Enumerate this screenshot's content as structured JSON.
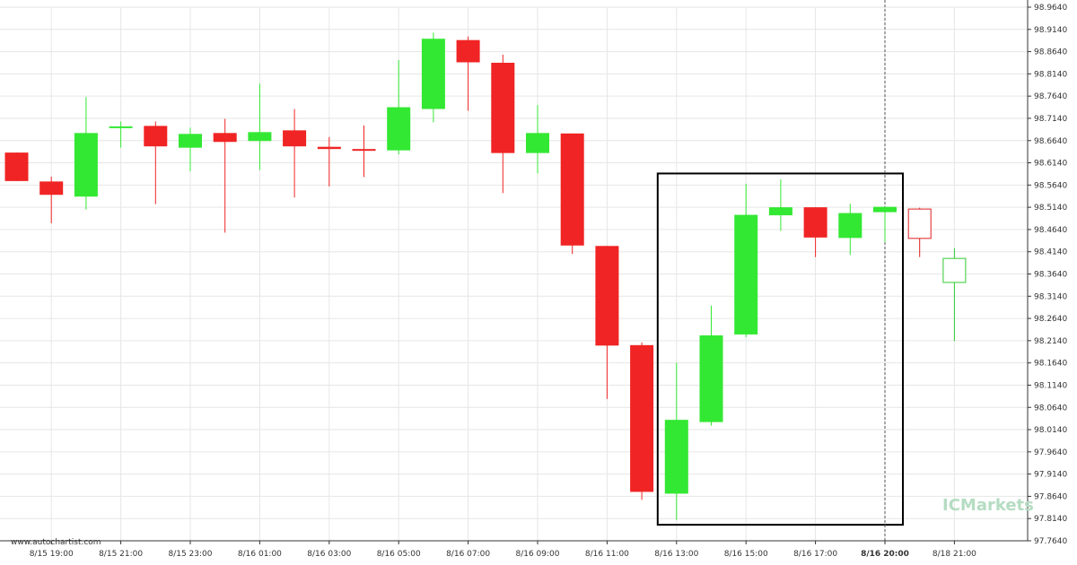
{
  "source_label": "www.autochartist.com",
  "brand": {
    "name": "ICMarkets",
    "color": "#b5dcc2"
  },
  "colors": {
    "up": "#33e833",
    "down": "#f02424",
    "grid": "#e6e6e6",
    "pattern_box": "#000000",
    "forecast_outline_down": "#e02020",
    "forecast_outline_up": "#33cc33"
  },
  "chart_data": {
    "type": "candlestick",
    "title": "",
    "xlabel": "",
    "ylabel": "",
    "ylim": [
      97.764,
      98.964
    ],
    "grid": true,
    "y_ticks": [
      "98.9640",
      "98.9140",
      "98.8640",
      "98.8140",
      "98.7640",
      "98.7140",
      "98.6640",
      "98.6140",
      "98.5640",
      "98.5140",
      "98.4640",
      "98.4140",
      "98.3640",
      "98.3140",
      "98.2640",
      "98.2140",
      "98.1640",
      "98.1140",
      "98.0640",
      "98.0140",
      "97.9640",
      "97.9140",
      "97.8640",
      "97.8140",
      "97.7640"
    ],
    "x_ticks": [
      {
        "label": "8/15 19:00",
        "index": 1,
        "bold": false
      },
      {
        "label": "8/15 21:00",
        "index": 3,
        "bold": false
      },
      {
        "label": "8/15 23:00",
        "index": 5,
        "bold": false
      },
      {
        "label": "8/16 01:00",
        "index": 7,
        "bold": false
      },
      {
        "label": "8/16 03:00",
        "index": 9,
        "bold": false
      },
      {
        "label": "8/16 05:00",
        "index": 11,
        "bold": false
      },
      {
        "label": "8/16 07:00",
        "index": 13,
        "bold": false
      },
      {
        "label": "8/16 09:00",
        "index": 15,
        "bold": false
      },
      {
        "label": "8/16 11:00",
        "index": 17,
        "bold": false
      },
      {
        "label": "8/16 13:00",
        "index": 19,
        "bold": false
      },
      {
        "label": "8/16 15:00",
        "index": 21,
        "bold": false
      },
      {
        "label": "8/16 17:00",
        "index": 23,
        "bold": false
      },
      {
        "label": "8/16 20:00",
        "index": 25,
        "bold": true
      },
      {
        "label": "8/18 21:00",
        "index": 27,
        "bold": false
      }
    ],
    "candles": [
      {
        "o": 98.637,
        "h": 98.637,
        "l": 98.573,
        "c": 98.573
      },
      {
        "o": 98.572,
        "h": 98.583,
        "l": 98.478,
        "c": 98.542
      },
      {
        "o": 98.538,
        "h": 98.762,
        "l": 98.509,
        "c": 98.681
      },
      {
        "o": 98.694,
        "h": 98.707,
        "l": 98.648,
        "c": 98.696
      },
      {
        "o": 98.697,
        "h": 98.707,
        "l": 98.521,
        "c": 98.651
      },
      {
        "o": 98.648,
        "h": 98.693,
        "l": 98.595,
        "c": 98.679
      },
      {
        "o": 98.681,
        "h": 98.713,
        "l": 98.457,
        "c": 98.661
      },
      {
        "o": 98.663,
        "h": 98.792,
        "l": 98.598,
        "c": 98.683
      },
      {
        "o": 98.687,
        "h": 98.735,
        "l": 98.536,
        "c": 98.651
      },
      {
        "o": 98.65,
        "h": 98.672,
        "l": 98.561,
        "c": 98.645
      },
      {
        "o": 98.645,
        "h": 98.698,
        "l": 98.582,
        "c": 98.643
      },
      {
        "o": 98.642,
        "h": 98.845,
        "l": 98.633,
        "c": 98.739
      },
      {
        "o": 98.735,
        "h": 98.907,
        "l": 98.705,
        "c": 98.893
      },
      {
        "o": 98.89,
        "h": 98.898,
        "l": 98.731,
        "c": 98.84
      },
      {
        "o": 98.839,
        "h": 98.857,
        "l": 98.546,
        "c": 98.636
      },
      {
        "o": 98.636,
        "h": 98.744,
        "l": 98.59,
        "c": 98.681
      },
      {
        "o": 98.68,
        "h": 98.68,
        "l": 98.409,
        "c": 98.428
      },
      {
        "o": 98.427,
        "h": 98.427,
        "l": 98.083,
        "c": 98.203
      },
      {
        "o": 98.204,
        "h": 98.21,
        "l": 97.856,
        "c": 97.874
      },
      {
        "o": 97.87,
        "h": 98.164,
        "l": 97.811,
        "c": 98.036
      },
      {
        "o": 98.031,
        "h": 98.293,
        "l": 98.023,
        "c": 98.226
      },
      {
        "o": 98.228,
        "h": 98.567,
        "l": 98.222,
        "c": 98.497
      },
      {
        "o": 98.496,
        "h": 98.577,
        "l": 98.461,
        "c": 98.514
      },
      {
        "o": 98.514,
        "h": 98.514,
        "l": 98.402,
        "c": 98.446
      },
      {
        "o": 98.445,
        "h": 98.522,
        "l": 98.407,
        "c": 98.501
      },
      {
        "o": 98.503,
        "h": 98.514,
        "l": 98.436,
        "c": 98.515
      },
      {
        "o": 98.51,
        "h": 98.513,
        "l": 98.402,
        "c": 98.444,
        "forecast": true
      },
      {
        "o": 98.345,
        "h": 98.422,
        "l": 98.213,
        "c": 98.399,
        "forecast": true
      }
    ],
    "pattern_box": {
      "from_index": 19,
      "to_index": 25,
      "top": 98.59,
      "bottom": 97.8
    },
    "current_marker_index": 25
  }
}
